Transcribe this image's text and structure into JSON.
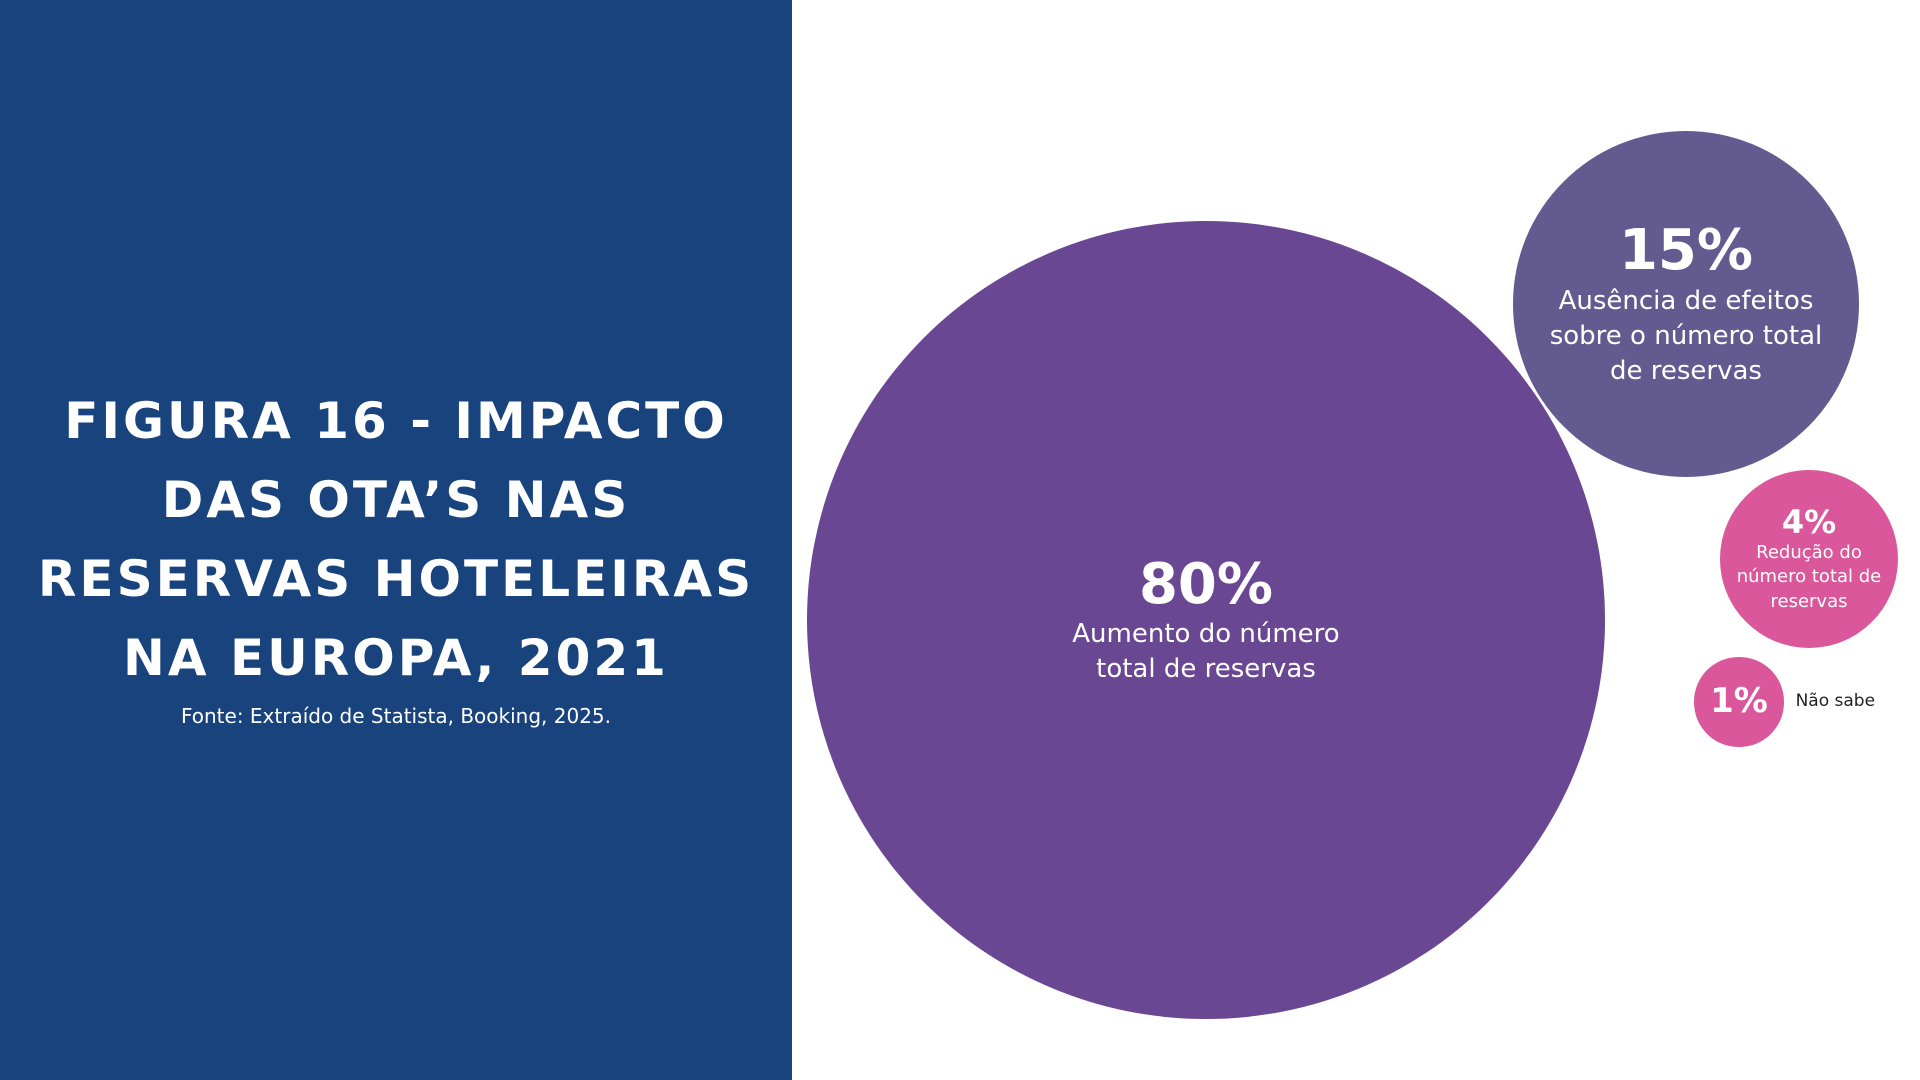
{
  "chart_data": {
    "type": "bubble",
    "title": "FIGURA 16 - IMPACTO DAS OTA’S NAS RESERVAS HOTELEIRAS NA EUROPA, 2021",
    "subtitle": "Fonte: Extraído de Statista, Booking, 2025.",
    "categories": [
      "Aumento do número total de reservas",
      "Ausência de efeitos sobre o número total de reservas",
      "Redução do número total de reservas",
      "Não sabe"
    ],
    "values": [
      80,
      15,
      4,
      1
    ],
    "value_labels": [
      "80%",
      "15%",
      "4%",
      "1%"
    ],
    "colors": [
      "#6a4793",
      "#635a8f",
      "#d9579a",
      "#d9579a"
    ]
  }
}
